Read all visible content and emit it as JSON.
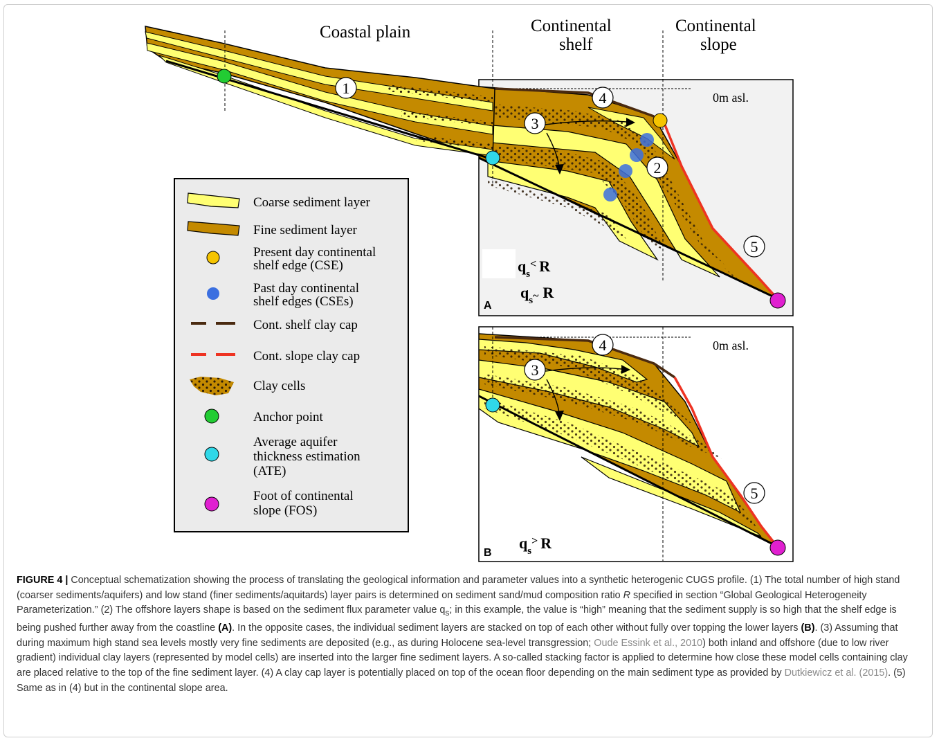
{
  "region_labels": {
    "coastal_plain": "Coastal plain",
    "continental_shelf_line1": "Continental",
    "continental_shelf_line2": "shelf",
    "continental_slope_line1": "Continental",
    "continental_slope_line2": "slope"
  },
  "panel_a": {
    "label": "A",
    "sea_level": "0m asl.",
    "formula_1": {
      "q": "q",
      "sub": "s",
      "op": "<",
      "r": "R"
    },
    "formula_2": {
      "q": "q",
      "sub": "s",
      "op": "~",
      "r": "R"
    },
    "markers": [
      "1",
      "2",
      "3",
      "4",
      "5"
    ]
  },
  "panel_b": {
    "label": "B",
    "sea_level": "0m asl.",
    "formula": {
      "q": "q",
      "sub": "s",
      "op": ">",
      "r": "R"
    },
    "markers": [
      "3",
      "4",
      "5"
    ]
  },
  "legend": {
    "items": [
      {
        "label": "Coarse sediment layer",
        "symbol": "coarse-layer-icon"
      },
      {
        "label": "Fine sediment layer",
        "symbol": "fine-layer-icon"
      },
      {
        "label_line1": "Present day continental",
        "label_line2": "shelf edge (CSE)",
        "symbol": "yellow-dot-icon",
        "color": "#f5c400"
      },
      {
        "label_line1": "Past day continental",
        "label_line2": "shelf edges (CSEs)",
        "symbol": "blue-dot-icon",
        "color": "#3b6fe0"
      },
      {
        "label": "Cont. shelf clay cap",
        "symbol": "brown-dash-icon",
        "color": "#4a2a10"
      },
      {
        "label": "Cont. slope clay cap",
        "symbol": "red-dash-icon",
        "color": "#ee3322"
      },
      {
        "label": "Clay cells",
        "symbol": "clay-cells-icon"
      },
      {
        "label": "Anchor point",
        "symbol": "green-dot-icon",
        "color": "#22cc33"
      },
      {
        "label_line1": "Average aquifer",
        "label_line2": "thickness estimation",
        "label_line3": "(ATE)",
        "symbol": "cyan-dot-icon",
        "color": "#30d8e8"
      },
      {
        "label_line1": "Foot of continental",
        "label_line2": "slope (FOS)",
        "symbol": "magenta-dot-icon",
        "color": "#e020d0"
      }
    ]
  },
  "colors": {
    "coarse": "#ffff73",
    "fine": "#c48a00",
    "outline": "#000000",
    "panel_bg": "#f2f2f2",
    "legend_bg": "#ebebeb"
  },
  "caption": {
    "fig_label": "FIGURE 4 |",
    "p1": " Conceptual schematization showing the process of translating the geological information and parameter values into a synthetic heterogenic CUGS profile. (1) The total number of high stand (coarser sediments/aquifers) and low stand (finer sediments/aquitards) layer pairs is determined on sediment sand/mud composition ratio ",
    "r_italic": "R",
    "p2": " specified in section “Global Geological Heterogeneity Parameterization.” (2) The offshore layers shape is based on the sediment flux parameter value q",
    "p2_sub": "s",
    "p3": "; in this example, the value is “high” meaning that the sediment supply is so high that the shelf edge is being pushed further away from the coastline ",
    "a_ref": "(A)",
    "p4": ". In the opposite cases, the individual sediment layers are stacked on top of each other without fully over topping the lower layers ",
    "b_ref": "(B)",
    "p5": ". (3) Assuming that during maximum high stand sea levels mostly very fine sediments are deposited (e.g., as during Holocene sea-level transgression; ",
    "ref1": "Oude Essink et al., 2010",
    "p6": ") both inland and offshore (due to low river gradient) individual clay layers (represented by model cells) are inserted into the larger fine sediment layers. A so-called stacking factor is applied to determine how close these model cells containing clay are placed relative to the top of the fine sediment layer. (4) A clay cap layer is potentially placed on top of the ocean floor depending on the main sediment type as provided by ",
    "ref2": "Dutkiewicz et al. (2015)",
    "p7": ". (5) Same as in (4) but in the continental slope area."
  }
}
